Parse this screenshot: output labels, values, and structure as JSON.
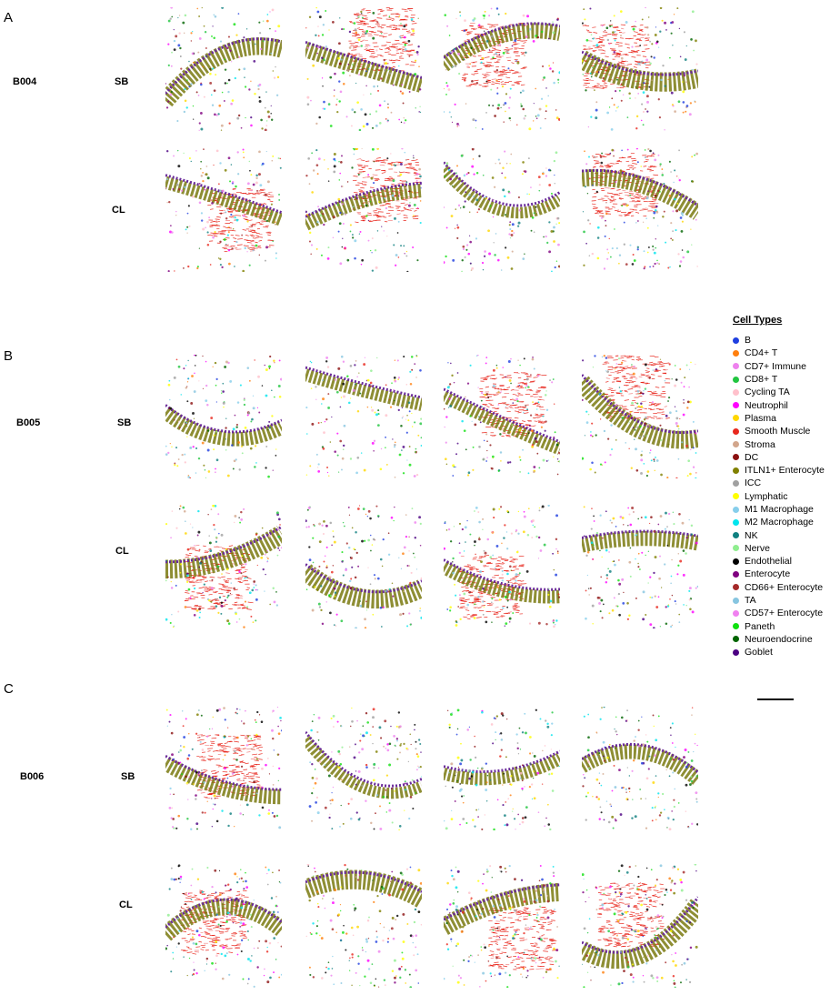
{
  "panels": [
    {
      "letter": "A",
      "sample": "B004",
      "rows": [
        "SB",
        "CL"
      ]
    },
    {
      "letter": "B",
      "sample": "B005",
      "rows": [
        "SB",
        "CL"
      ]
    },
    {
      "letter": "C",
      "sample": "B006",
      "rows": [
        "SB",
        "CL"
      ]
    }
  ],
  "legend": {
    "title": "Cell Types",
    "items": [
      {
        "label": "B",
        "color": "#1f3fe0"
      },
      {
        "label": "CD4+ T",
        "color": "#ff7f0e"
      },
      {
        "label": "CD7+ Immune",
        "color": "#ee82ee"
      },
      {
        "label": "CD8+ T",
        "color": "#22c540"
      },
      {
        "label": "Cycling TA",
        "color": "#ffc0cb"
      },
      {
        "label": "Neutrophil",
        "color": "#ff00ff"
      },
      {
        "label": "Plasma",
        "color": "#ffd700"
      },
      {
        "label": "Smooth Muscle",
        "color": "#e8281e"
      },
      {
        "label": "Stroma",
        "color": "#d2a68c"
      },
      {
        "label": "DC",
        "color": "#8b1010"
      },
      {
        "label": "ITLN1+ Enterocyte",
        "color": "#808000"
      },
      {
        "label": "ICC",
        "color": "#a0a0a0"
      },
      {
        "label": "Lymphatic",
        "color": "#ffff00"
      },
      {
        "label": "M1 Macrophage",
        "color": "#87ceeb"
      },
      {
        "label": "M2 Macrophage",
        "color": "#00e5ee"
      },
      {
        "label": "NK",
        "color": "#108080"
      },
      {
        "label": "Nerve",
        "color": "#90ee90"
      },
      {
        "label": "Endothelial",
        "color": "#000000"
      },
      {
        "label": "Enterocyte",
        "color": "#800080"
      },
      {
        "label": "CD66+ Enterocyte",
        "color": "#a52a2a"
      },
      {
        "label": "TA",
        "color": "#87c5e0"
      },
      {
        "label": "CD57+ Enterocyte",
        "color": "#f080f0"
      },
      {
        "label": "Paneth",
        "color": "#10e010"
      },
      {
        "label": "Neuroendocrine",
        "color": "#006400"
      },
      {
        "label": "Goblet",
        "color": "#4b0082"
      }
    ]
  }
}
